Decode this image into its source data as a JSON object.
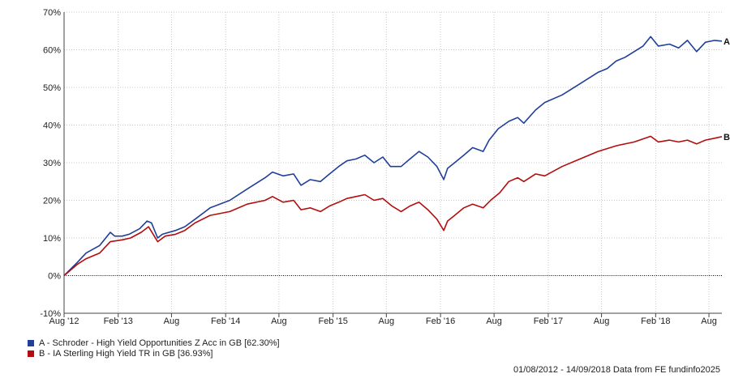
{
  "chart_data": {
    "type": "line",
    "y_ticks": [
      "70%",
      "60%",
      "50%",
      "40%",
      "30%",
      "20%",
      "10%",
      "0%",
      "-10%"
    ],
    "ylim": [
      -10,
      70
    ],
    "x_ticks": [
      "Aug '12",
      "Feb '13",
      "Aug",
      "Feb '14",
      "Aug",
      "Feb '15",
      "Aug",
      "Feb '16",
      "Aug",
      "Feb '17",
      "Aug",
      "Feb '18",
      "Aug"
    ],
    "grid": true,
    "zero_line": "dotted",
    "legend_position": "bottom-left",
    "series": [
      {
        "name": "A - Schroder - High Yield Opportunities Z Acc in GB [62.30%]",
        "end_label": "A",
        "color": "#1f3f99",
        "points": [
          [
            "2012-08-01",
            0
          ],
          [
            "2012-09-15",
            3.5
          ],
          [
            "2012-10-15",
            6
          ],
          [
            "2012-11-30",
            8
          ],
          [
            "2013-01-05",
            11.5
          ],
          [
            "2013-01-20",
            10.5
          ],
          [
            "2013-02-15",
            10.5
          ],
          [
            "2013-03-10",
            11
          ],
          [
            "2013-04-15",
            12.5
          ],
          [
            "2013-05-10",
            14.5
          ],
          [
            "2013-05-25",
            14
          ],
          [
            "2013-06-15",
            10
          ],
          [
            "2013-07-01",
            11
          ],
          [
            "2013-08-15",
            12
          ],
          [
            "2013-09-15",
            13
          ],
          [
            "2013-10-20",
            15
          ],
          [
            "2013-12-10",
            18
          ],
          [
            "2014-02-15",
            20
          ],
          [
            "2014-04-15",
            23
          ],
          [
            "2014-06-15",
            26
          ],
          [
            "2014-07-10",
            27.5
          ],
          [
            "2014-08-15",
            26.5
          ],
          [
            "2014-09-20",
            27
          ],
          [
            "2014-10-15",
            24
          ],
          [
            "2014-11-15",
            25.5
          ],
          [
            "2014-12-20",
            25
          ],
          [
            "2015-01-20",
            27
          ],
          [
            "2015-02-20",
            29
          ],
          [
            "2015-03-20",
            30.5
          ],
          [
            "2015-04-20",
            31
          ],
          [
            "2015-05-20",
            32
          ],
          [
            "2015-06-20",
            30
          ],
          [
            "2015-07-20",
            31.5
          ],
          [
            "2015-08-15",
            29
          ],
          [
            "2015-09-20",
            29
          ],
          [
            "2015-10-20",
            31
          ],
          [
            "2015-11-20",
            33
          ],
          [
            "2015-12-20",
            31.5
          ],
          [
            "2016-01-20",
            29
          ],
          [
            "2016-02-12",
            25.5
          ],
          [
            "2016-02-25",
            28.5
          ],
          [
            "2016-03-20",
            30
          ],
          [
            "2016-04-20",
            32
          ],
          [
            "2016-05-20",
            34
          ],
          [
            "2016-06-25",
            33
          ],
          [
            "2016-07-15",
            36
          ],
          [
            "2016-08-15",
            39
          ],
          [
            "2016-09-20",
            41
          ],
          [
            "2016-10-20",
            42
          ],
          [
            "2016-11-10",
            40.5
          ],
          [
            "2016-12-20",
            44
          ],
          [
            "2017-01-20",
            46
          ],
          [
            "2017-03-20",
            48
          ],
          [
            "2017-05-20",
            51
          ],
          [
            "2017-07-20",
            54
          ],
          [
            "2017-08-20",
            55
          ],
          [
            "2017-09-20",
            57
          ],
          [
            "2017-10-20",
            58
          ],
          [
            "2017-12-20",
            61
          ],
          [
            "2018-01-15",
            63.5
          ],
          [
            "2018-02-10",
            61
          ],
          [
            "2018-03-20",
            61.5
          ],
          [
            "2018-04-20",
            60.5
          ],
          [
            "2018-05-20",
            62.5
          ],
          [
            "2018-06-20",
            59.5
          ],
          [
            "2018-07-20",
            62
          ],
          [
            "2018-08-20",
            62.5
          ],
          [
            "2018-09-14",
            62.3
          ]
        ]
      },
      {
        "name": "B - IA Sterling High Yield TR in GB [36.93%]",
        "end_label": "B",
        "color": "#b30d0d",
        "points": [
          [
            "2012-08-01",
            0
          ],
          [
            "2012-09-15",
            3
          ],
          [
            "2012-10-15",
            4.5
          ],
          [
            "2012-11-30",
            6
          ],
          [
            "2013-01-05",
            9
          ],
          [
            "2013-02-15",
            9.5
          ],
          [
            "2013-03-15",
            10
          ],
          [
            "2013-04-20",
            11.5
          ],
          [
            "2013-05-15",
            13
          ],
          [
            "2013-06-15",
            9
          ],
          [
            "2013-07-10",
            10.5
          ],
          [
            "2013-08-15",
            11
          ],
          [
            "2013-09-15",
            12
          ],
          [
            "2013-10-20",
            14
          ],
          [
            "2013-12-10",
            16
          ],
          [
            "2014-02-15",
            17
          ],
          [
            "2014-04-15",
            19
          ],
          [
            "2014-06-15",
            20
          ],
          [
            "2014-07-10",
            21
          ],
          [
            "2014-08-15",
            19.5
          ],
          [
            "2014-09-20",
            20
          ],
          [
            "2014-10-15",
            17.5
          ],
          [
            "2014-11-15",
            18
          ],
          [
            "2014-12-20",
            17
          ],
          [
            "2015-01-20",
            18.5
          ],
          [
            "2015-02-20",
            19.5
          ],
          [
            "2015-03-20",
            20.5
          ],
          [
            "2015-04-20",
            21
          ],
          [
            "2015-05-20",
            21.5
          ],
          [
            "2015-06-20",
            20
          ],
          [
            "2015-07-20",
            20.5
          ],
          [
            "2015-08-20",
            18.5
          ],
          [
            "2015-09-20",
            17
          ],
          [
            "2015-10-20",
            18.5
          ],
          [
            "2015-11-20",
            19.5
          ],
          [
            "2015-12-20",
            17.5
          ],
          [
            "2016-01-20",
            15
          ],
          [
            "2016-02-12",
            12
          ],
          [
            "2016-02-25",
            14.5
          ],
          [
            "2016-03-20",
            16
          ],
          [
            "2016-04-20",
            18
          ],
          [
            "2016-05-20",
            19
          ],
          [
            "2016-06-25",
            18
          ],
          [
            "2016-07-20",
            20
          ],
          [
            "2016-08-20",
            22
          ],
          [
            "2016-09-20",
            25
          ],
          [
            "2016-10-20",
            26
          ],
          [
            "2016-11-10",
            25
          ],
          [
            "2016-12-20",
            27
          ],
          [
            "2017-01-20",
            26.5
          ],
          [
            "2017-03-20",
            29
          ],
          [
            "2017-05-20",
            31
          ],
          [
            "2017-07-20",
            33
          ],
          [
            "2017-09-20",
            34.5
          ],
          [
            "2017-11-20",
            35.5
          ],
          [
            "2018-01-15",
            37
          ],
          [
            "2018-02-10",
            35.5
          ],
          [
            "2018-03-20",
            36
          ],
          [
            "2018-04-20",
            35.5
          ],
          [
            "2018-05-20",
            36
          ],
          [
            "2018-06-20",
            35
          ],
          [
            "2018-07-20",
            36
          ],
          [
            "2018-08-20",
            36.5
          ],
          [
            "2018-09-14",
            36.93
          ]
        ]
      }
    ]
  },
  "footer_text": "01/08/2012 - 14/09/2018 Data from FE fundinfo2025"
}
